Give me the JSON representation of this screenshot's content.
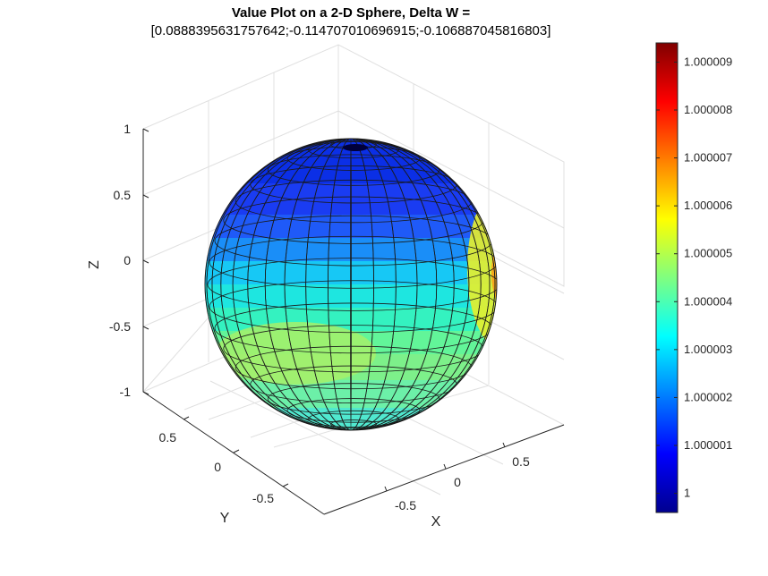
{
  "chart_data": {
    "type": "surface",
    "title": "Value Plot on a 2-D Sphere, Delta W =",
    "subtitle": "[0.0888395631757642;-0.114707010696915;-0.106887045816803]",
    "xlabel": "X",
    "ylabel": "Y",
    "zlabel": "Z",
    "xticks": [
      "-0.5",
      "0",
      "0.5"
    ],
    "yticks": [
      "-0.5",
      "0",
      "0.5"
    ],
    "zticks": [
      "-1",
      "-0.5",
      "0",
      "0.5",
      "1"
    ],
    "xlim": [
      -1,
      1
    ],
    "ylim": [
      -1,
      1
    ],
    "zlim": [
      -1,
      1
    ],
    "grid": true,
    "colormap": "jet",
    "colorbar": {
      "location": "right",
      "clim": [
        0.9999996,
        1.0000094
      ],
      "ticks": [
        "1",
        "1.000001",
        "1.000002",
        "1.000003",
        "1.000004",
        "1.000005",
        "1.000006",
        "1.000007",
        "1.000008",
        "1.000009"
      ]
    },
    "delta_w": [
      0.0888395631757642,
      -0.114707010696915,
      -0.106887045816803
    ]
  }
}
